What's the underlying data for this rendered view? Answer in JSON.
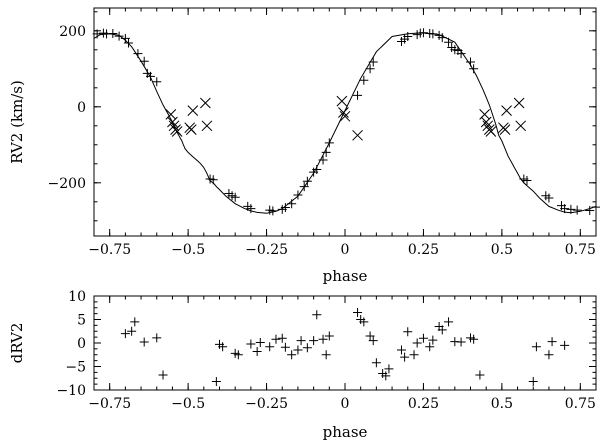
{
  "chart_data": [
    {
      "type": "scatter",
      "title": "",
      "xlabel": "phase",
      "ylabel": "RV2  (km/s)",
      "xlim": [
        -0.8,
        0.8
      ],
      "ylim": [
        -340,
        260
      ],
      "xticks": [
        -0.75,
        -0.5,
        -0.25,
        0,
        0.25,
        0.5,
        0.75
      ],
      "xtick_labels": [
        "−0.75",
        "−0.5",
        "−0.25",
        "0",
        "0.25",
        "0.5",
        "0.75"
      ],
      "yticks": [
        200,
        0,
        -200
      ],
      "ytick_labels": [
        "200",
        "0",
        "−200"
      ],
      "series": [
        {
          "name": "model curve",
          "style": "line",
          "x": [
            -0.8,
            -0.78,
            -0.75,
            -0.72,
            -0.7,
            -0.68,
            -0.65,
            -0.62,
            -0.6,
            -0.58,
            -0.56,
            -0.55,
            -0.54,
            -0.53,
            -0.52,
            -0.515,
            -0.51,
            -0.5,
            -0.49,
            -0.48,
            -0.47,
            -0.46,
            -0.45,
            -0.44,
            -0.43,
            -0.42,
            -0.41,
            -0.4,
            -0.38,
            -0.35,
            -0.32,
            -0.3,
            -0.28,
            -0.25,
            -0.22,
            -0.2,
            -0.15,
            -0.1,
            -0.05,
            0,
            0.05,
            0.1,
            0.15,
            0.2,
            0.25,
            0.3,
            0.35,
            0.4,
            0.42,
            0.44,
            0.45,
            0.46,
            0.47,
            0.48,
            0.485,
            0.49,
            0.5,
            0.51,
            0.515,
            0.52,
            0.53,
            0.54,
            0.55,
            0.56,
            0.57,
            0.58,
            0.6,
            0.62,
            0.65,
            0.68,
            0.7,
            0.72,
            0.75,
            0.78,
            0.8
          ],
          "y": [
            180,
            190,
            192,
            188,
            175,
            158,
            120,
            78,
            40,
            5,
            -25,
            -40,
            -60,
            -75,
            -90,
            -100,
            -110,
            -120,
            -128,
            -135,
            -142,
            -150,
            -160,
            -175,
            -195,
            -200,
            -210,
            -218,
            -235,
            -255,
            -268,
            -274,
            -278,
            -280,
            -275,
            -268,
            -235,
            -175,
            -95,
            -10,
            75,
            145,
            185,
            192,
            195,
            190,
            170,
            110,
            80,
            45,
            25,
            5,
            -20,
            -45,
            -60,
            -75,
            -90,
            -110,
            -120,
            -130,
            -145,
            -160,
            -175,
            -190,
            -200,
            -208,
            -222,
            -240,
            -262,
            -272,
            -277,
            -279,
            -275,
            -268,
            -262
          ]
        },
        {
          "name": "plus points",
          "style": "plus",
          "x": [
            -0.79,
            -0.77,
            -0.76,
            -0.74,
            -0.72,
            -0.7,
            -0.69,
            -0.66,
            -0.64,
            -0.63,
            -0.62,
            -0.6,
            -0.43,
            -0.42,
            -0.37,
            -0.36,
            -0.35,
            -0.31,
            -0.3,
            -0.24,
            -0.23,
            -0.2,
            -0.19,
            -0.17,
            -0.15,
            -0.13,
            -0.12,
            -0.1,
            -0.09,
            -0.07,
            -0.06,
            -0.05,
            0.04,
            0.06,
            0.08,
            0.09,
            0.18,
            0.19,
            0.2,
            0.23,
            0.24,
            0.25,
            0.27,
            0.28,
            0.3,
            0.31,
            0.33,
            0.34,
            0.35,
            0.36,
            0.37,
            0.4,
            0.41,
            0.57,
            0.58,
            0.64,
            0.65,
            0.69,
            0.7,
            0.72,
            0.74,
            0.78,
            0.8
          ],
          "y": [
            192,
            194,
            192,
            193,
            186,
            180,
            168,
            140,
            120,
            88,
            80,
            66,
            -190,
            -192,
            -228,
            -234,
            -238,
            -262,
            -268,
            -272,
            -274,
            -270,
            -265,
            -255,
            -232,
            -210,
            -196,
            -172,
            -165,
            -140,
            -120,
            -95,
            30,
            70,
            100,
            118,
            172,
            178,
            185,
            190,
            194,
            195,
            193,
            192,
            188,
            182,
            170,
            156,
            150,
            148,
            140,
            118,
            100,
            -190,
            -194,
            -234,
            -240,
            -260,
            -268,
            -270,
            -272,
            -273,
            -264
          ]
        },
        {
          "name": "cross points",
          "style": "x",
          "x": [
            -0.555,
            -0.55,
            -0.545,
            -0.54,
            -0.535,
            -0.495,
            -0.49,
            -0.485,
            -0.445,
            -0.44,
            -0.01,
            -0.005,
            0,
            0.04,
            0.445,
            0.45,
            0.455,
            0.46,
            0.465,
            0.505,
            0.51,
            0.515,
            0.555,
            0.56
          ],
          "y": [
            -20,
            -40,
            -50,
            -60,
            -65,
            -55,
            -60,
            -10,
            10,
            -50,
            15,
            -15,
            -25,
            -75,
            -20,
            -40,
            -50,
            -60,
            -65,
            -55,
            -60,
            -10,
            10,
            -50
          ]
        }
      ]
    },
    {
      "type": "scatter",
      "title": "",
      "xlabel": "phase",
      "ylabel": "dRV2",
      "xlim": [
        -0.8,
        0.8
      ],
      "ylim": [
        -10,
        10
      ],
      "xticks": [
        -0.75,
        -0.5,
        -0.25,
        0,
        0.25,
        0.5,
        0.75
      ],
      "xtick_labels": [
        "−0.75",
        "−0.5",
        "−0.25",
        "0",
        "0.25",
        "0.5",
        "0.75"
      ],
      "yticks": [
        10,
        5,
        0,
        -5,
        -10
      ],
      "ytick_labels": [
        "10",
        "5",
        "0",
        "−5",
        "−10"
      ],
      "series": [
        {
          "name": "residuals",
          "style": "plus",
          "x": [
            -0.7,
            -0.68,
            -0.67,
            -0.64,
            -0.6,
            -0.58,
            -0.41,
            -0.4,
            -0.39,
            -0.35,
            -0.34,
            -0.3,
            -0.28,
            -0.27,
            -0.24,
            -0.22,
            -0.2,
            -0.19,
            -0.17,
            -0.15,
            -0.14,
            -0.12,
            -0.1,
            -0.09,
            -0.07,
            -0.06,
            -0.05,
            0.04,
            0.05,
            0.06,
            0.08,
            0.09,
            0.1,
            0.12,
            0.13,
            0.14,
            0.18,
            0.19,
            0.2,
            0.22,
            0.23,
            0.25,
            0.27,
            0.28,
            0.3,
            0.31,
            0.33,
            0.35,
            0.37,
            0.4,
            0.41,
            0.43,
            0.6,
            0.61,
            0.65,
            0.66,
            0.7
          ],
          "y": [
            2,
            2.5,
            4.5,
            0.2,
            1.1,
            -6.8,
            -8.2,
            -0.3,
            -0.8,
            -2.2,
            -2.5,
            -0.2,
            -1.8,
            0.1,
            -0.8,
            0.8,
            1,
            -0.9,
            -2.5,
            -1.5,
            0.5,
            -1,
            0.5,
            6,
            0.8,
            -2.5,
            1.5,
            6.5,
            5,
            4.5,
            1.5,
            0.5,
            -4.2,
            -6.5,
            -7,
            -5.5,
            -1.5,
            -3,
            2.4,
            -2.5,
            0,
            1,
            -0.8,
            0.6,
            3.5,
            2.8,
            4.5,
            0.3,
            0.2,
            1.1,
            0.8,
            -6.8,
            -8.2,
            -0.8,
            -2.5,
            0.3,
            -0.5
          ]
        }
      ]
    }
  ]
}
